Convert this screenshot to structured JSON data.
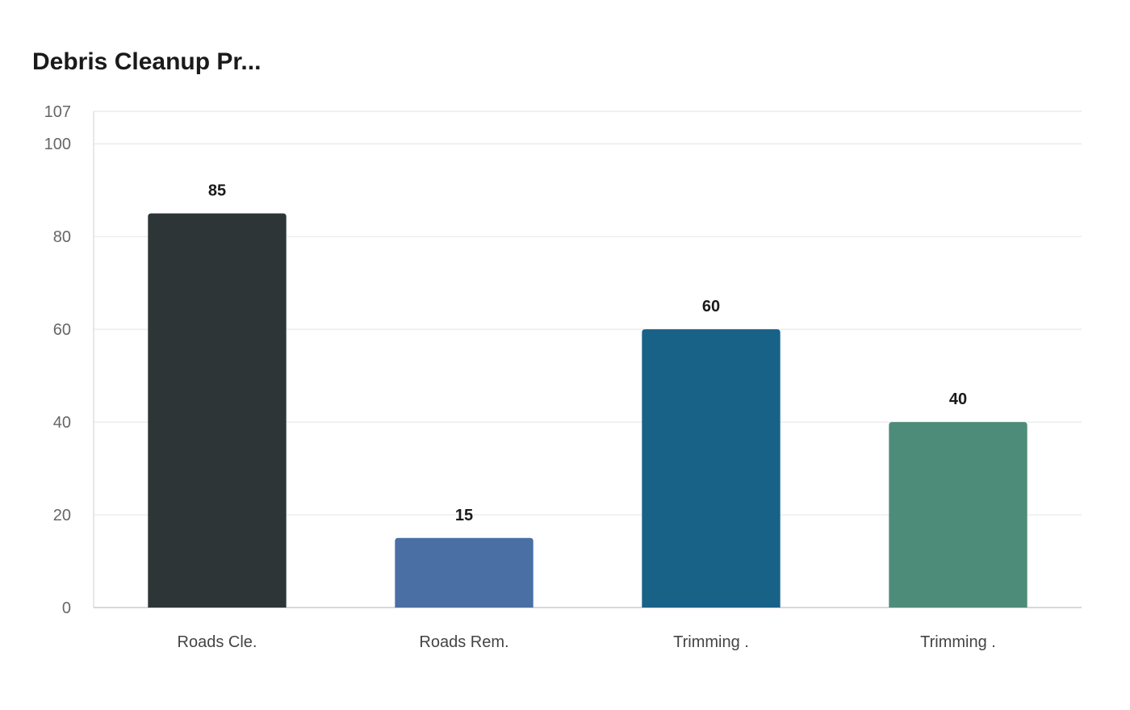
{
  "chart_data": {
    "type": "bar",
    "title": "Debris Cleanup Pr...",
    "categories": [
      "Roads Cle.",
      "Roads Rem.",
      "Trimming .",
      "Trimming ."
    ],
    "values": [
      85,
      15,
      60,
      40
    ],
    "colors": [
      "#2d3537",
      "#4a6fa5",
      "#186288",
      "#4e8c7a"
    ],
    "ylim": [
      0,
      107
    ],
    "yticks": [
      0,
      20,
      40,
      60,
      80,
      100,
      107
    ],
    "xlabel": "",
    "ylabel": "",
    "grid": true,
    "data_labels": true
  }
}
